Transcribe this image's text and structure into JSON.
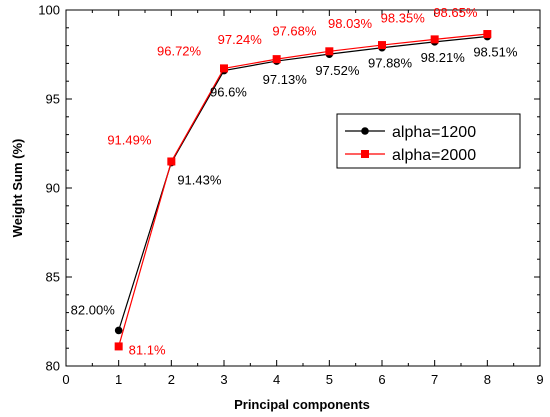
{
  "chart_data": {
    "type": "line",
    "title": "",
    "xlabel": "Principal components",
    "ylabel": "Weight Sum (%)",
    "xlim": [
      0,
      9
    ],
    "ylim": [
      80,
      100
    ],
    "xticks": [
      0,
      1,
      2,
      3,
      4,
      5,
      6,
      7,
      8,
      9
    ],
    "yticks": [
      80,
      85,
      90,
      95,
      100
    ],
    "grid": false,
    "legend_position": "upper-right",
    "series": [
      {
        "name": "alpha=1200",
        "color": "#000000",
        "marker": "circle",
        "x": [
          1,
          2,
          3,
          4,
          5,
          6,
          7,
          8
        ],
        "y": [
          82.0,
          91.43,
          96.6,
          97.13,
          97.52,
          97.88,
          98.21,
          98.51
        ],
        "labels": [
          "82.00%",
          "91.43%",
          "96.6%",
          "97.13%",
          "97.52%",
          "97.88%",
          "98.21%",
          "98.51%"
        ]
      },
      {
        "name": "alpha=2000",
        "color": "#ff0000",
        "marker": "square",
        "x": [
          1,
          2,
          3,
          4,
          5,
          6,
          7,
          8
        ],
        "y": [
          81.1,
          91.49,
          96.72,
          97.24,
          97.68,
          98.03,
          98.35,
          98.65
        ],
        "labels": [
          "81.1%",
          "91.49%",
          "96.72%",
          "97.24%",
          "97.68%",
          "98.03%",
          "98.35%",
          "98.65%"
        ]
      }
    ]
  }
}
